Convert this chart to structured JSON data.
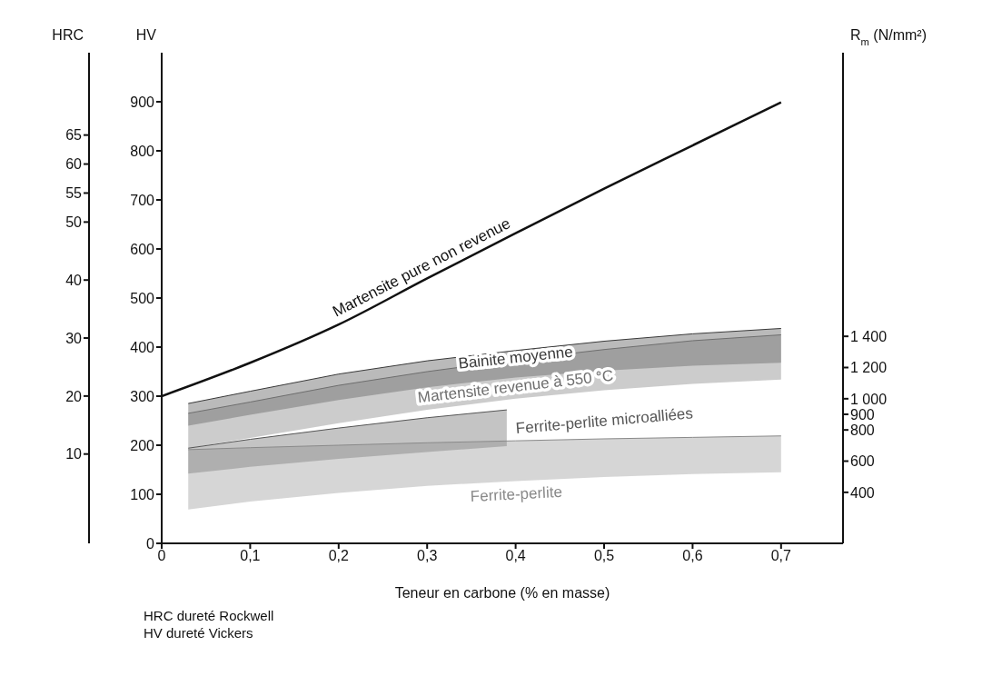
{
  "chart_data": {
    "type": "line",
    "xlabel": "Teneur en carbone (% en masse)",
    "ylabel": "HV",
    "y2label": "R$_{m}$ (N/mm²)",
    "y3label": "HRC",
    "xlim": [
      0,
      0.77
    ],
    "xticks": [
      0,
      {
        "value": 0.1,
        "label": "0,1"
      },
      {
        "value": 0.2,
        "label": "0,2"
      },
      {
        "value": 0.3,
        "label": "0,3"
      },
      {
        "value": 0.4,
        "label": "0,4"
      },
      {
        "value": 0.5,
        "label": "0,5"
      },
      {
        "value": 0.6,
        "label": "0,6"
      },
      {
        "value": 0.7,
        "label": "0,7"
      }
    ],
    "ylim": [
      0,
      1000
    ],
    "yticks": [
      0,
      100,
      200,
      300,
      400,
      500,
      600,
      700,
      800,
      900
    ],
    "y2lim": [
      73,
      3218
    ],
    "y2ticks": [
      400,
      600,
      800,
      900,
      {
        "value": 1000,
        "label": "1 000"
      },
      {
        "value": 1200,
        "label": "1 200"
      },
      {
        "value": 1400,
        "label": "1 400"
      }
    ],
    "y3lim": [
      -5.4,
      79.2
    ],
    "y3ticks": [
      10,
      20,
      30,
      40,
      50,
      55,
      60,
      65
    ],
    "series": [
      {
        "name": "Martensite pure non revenue",
        "color": "#111111",
        "x": [
          0,
          0.1,
          0.2,
          0.3,
          0.4,
          0.5,
          0.6,
          0.7
        ],
        "values": [
          300,
          368,
          446,
          540,
          632,
          723,
          811,
          899
        ]
      },
      {
        "name": "Bainite moyenne",
        "color": "#3a3a3a",
        "x": [
          0.03,
          0.1,
          0.2,
          0.3,
          0.4,
          0.5,
          0.6,
          0.7
        ],
        "values": [
          285,
          310,
          345,
          372,
          393,
          412,
          427,
          438
        ],
        "upper": [
          285,
          310,
          345,
          372,
          393,
          412,
          427,
          438
        ],
        "lower": [
          240,
          262,
          292,
          318,
          338,
          352,
          362,
          368
        ]
      },
      {
        "name": "Martensite revenue à 550 °C",
        "color": "#6e6e6e",
        "x": [
          0.03,
          0.1,
          0.2,
          0.3,
          0.4,
          0.5,
          0.6,
          0.7
        ],
        "values": [
          265,
          288,
          322,
          350,
          374,
          395,
          413,
          425
        ],
        "upper": [
          265,
          288,
          322,
          350,
          374,
          395,
          413,
          425
        ],
        "lower": [
          194,
          215,
          245,
          272,
          295,
          312,
          325,
          334
        ]
      },
      {
        "name": "Ferrite-perlite microalliées",
        "color": "#555555",
        "x": [
          0.03,
          0.1,
          0.2,
          0.3,
          0.39
        ],
        "values": [
          194,
          212,
          235,
          256,
          272
        ],
        "upper": [
          194,
          212,
          235,
          256,
          272
        ],
        "lower": [
          142,
          156,
          172,
          186,
          198
        ]
      },
      {
        "name": "Ferrite-perlite",
        "color": "#8a8a8a",
        "x": [
          0.03,
          0.1,
          0.2,
          0.3,
          0.4,
          0.5,
          0.6,
          0.7
        ],
        "values": [
          191,
          195,
          200,
          205,
          209,
          213,
          216,
          219
        ],
        "upper": [
          191,
          195,
          200,
          205,
          209,
          213,
          216,
          219
        ],
        "lower": [
          69,
          85,
          103,
          117,
          127,
          135,
          141,
          145
        ]
      }
    ],
    "annotations": [
      "HRC dureté Rockwell",
      "HV dureté Vickers"
    ]
  }
}
